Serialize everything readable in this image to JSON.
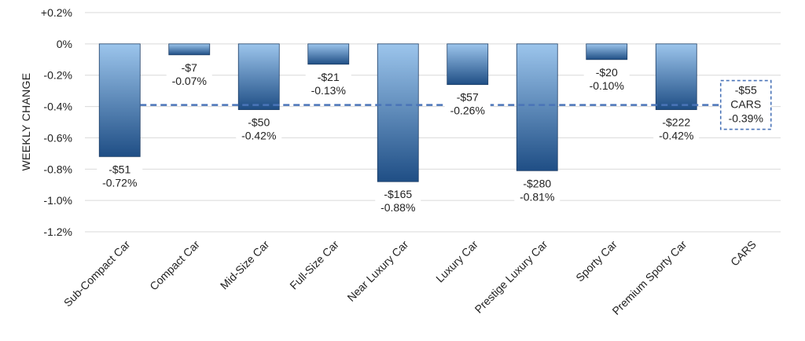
{
  "chart_data": {
    "type": "bar",
    "ylabel": "WEEKLY CHANGE",
    "ylim": [
      -1.2,
      0.2
    ],
    "ytick_values": [
      0.2,
      0,
      -0.2,
      -0.4,
      -0.6,
      -0.8,
      -1.0,
      -1.2
    ],
    "ytick_labels": [
      "+0.2%",
      "0%",
      "-0.2%",
      "-0.4%",
      "-0.6%",
      "-0.8%",
      "-1.0%",
      "-1.2%"
    ],
    "grid": true,
    "categories": [
      "Sub-Compact Car",
      "Compact Car",
      "Mid-Size Car",
      "Full-Size Car",
      "Near Luxury Car",
      "Luxury Car",
      "Prestige Luxury Car",
      "Sporty Car",
      "Premium Sporty Car",
      "CARS"
    ],
    "values": [
      -0.72,
      -0.07,
      -0.42,
      -0.13,
      -0.88,
      -0.26,
      -0.81,
      -0.1,
      -0.42,
      null
    ],
    "data_labels": [
      [
        "-$51",
        "-0.72%"
      ],
      [
        "-$7",
        "-0.07%"
      ],
      [
        "-$50",
        "-0.42%"
      ],
      [
        "-$21",
        "-0.13%"
      ],
      [
        "-$165",
        "-0.88%"
      ],
      [
        "-$57",
        "-0.26%"
      ],
      [
        "-$280",
        "-0.81%"
      ],
      [
        "-$20",
        "-0.10%"
      ],
      [
        "-$222",
        "-0.42%"
      ]
    ],
    "total": {
      "category": "CARS",
      "value": -0.39,
      "labels": [
        "-$55",
        "CARS",
        "-0.39%"
      ]
    },
    "colors": {
      "bar_light": "#9cc5ec",
      "bar_dark": "#1f4e85",
      "average_line": "#4a74b8",
      "grid": "#d9d9d9"
    }
  }
}
